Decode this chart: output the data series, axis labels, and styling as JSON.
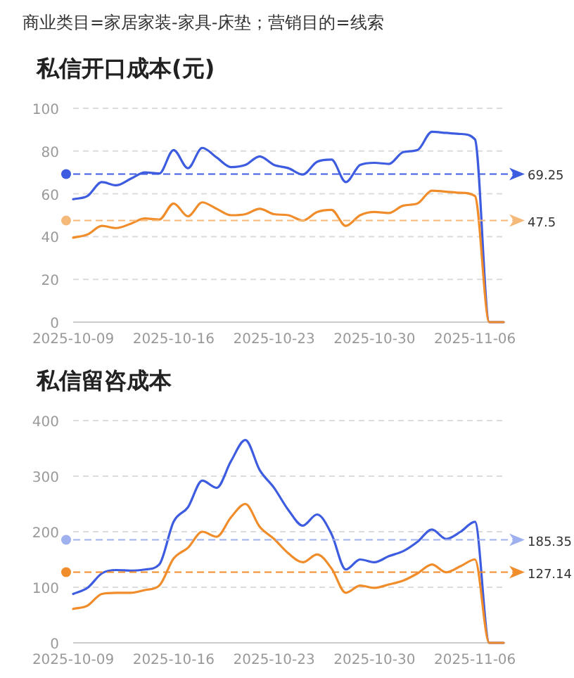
{
  "chart_data": [
    {
      "type": "line",
      "title": "私信开口成本(元)",
      "annotations": [
        "商业类目=家居家装-家具-床垫；营销目的=线索"
      ],
      "x": [
        "2025-10-09",
        "2025-10-10",
        "2025-10-11",
        "2025-10-12",
        "2025-10-13",
        "2025-10-14",
        "2025-10-15",
        "2025-10-16",
        "2025-10-17",
        "2025-10-18",
        "2025-10-19",
        "2025-10-20",
        "2025-10-21",
        "2025-10-22",
        "2025-10-23",
        "2025-10-24",
        "2025-10-25",
        "2025-10-26",
        "2025-10-27",
        "2025-10-28",
        "2025-10-29",
        "2025-10-30",
        "2025-10-31",
        "2025-11-01",
        "2025-11-02",
        "2025-11-03",
        "2025-11-04",
        "2025-11-05",
        "2025-11-06",
        "2025-11-07",
        "2025-11-08"
      ],
      "series": [
        {
          "color": "#3d5ce0",
          "values": [
            57.5,
            59,
            65.5,
            64,
            67,
            70,
            69.5,
            80.5,
            72,
            81.5,
            77,
            72.5,
            73.5,
            77.5,
            73.5,
            72,
            69,
            75,
            76,
            65.5,
            73.5,
            74.5,
            74,
            79.5,
            80.5,
            89,
            88.5,
            88,
            85.5,
            0,
            0
          ]
        },
        {
          "color": "#f08c2a",
          "values": [
            39.5,
            41,
            45,
            44,
            46,
            48.5,
            48,
            55.5,
            49.5,
            56,
            53,
            50,
            50.5,
            53,
            50.5,
            50,
            47.5,
            51.5,
            52.5,
            45,
            50,
            51.5,
            51,
            54.5,
            55.5,
            61.5,
            61,
            60.5,
            59,
            0,
            0
          ]
        }
      ],
      "xlim": [
        "2025-10-09",
        "2025-11-08"
      ],
      "xticks": [
        "2025-10-09",
        "2025-10-16",
        "2025-10-23",
        "2025-10-30",
        "2025-11-06"
      ],
      "ylim": [
        0,
        100
      ],
      "yticks": [
        0,
        20,
        40,
        60,
        80,
        100
      ],
      "grid": "y",
      "ref_lines": [
        {
          "axis": "y",
          "value": 69.25,
          "label": "69.25",
          "color": "#3d5ce0",
          "line_style": "dashed"
        },
        {
          "axis": "y",
          "value": 47.5,
          "label": "47.5",
          "color": "#f5b97a",
          "line_style": "dashed"
        }
      ]
    },
    {
      "type": "line",
      "title": "私信留咨成本",
      "x": [
        "2025-10-09",
        "2025-10-10",
        "2025-10-11",
        "2025-10-12",
        "2025-10-13",
        "2025-10-14",
        "2025-10-15",
        "2025-10-16",
        "2025-10-17",
        "2025-10-18",
        "2025-10-19",
        "2025-10-20",
        "2025-10-21",
        "2025-10-22",
        "2025-10-23",
        "2025-10-24",
        "2025-10-25",
        "2025-10-26",
        "2025-10-27",
        "2025-10-28",
        "2025-10-29",
        "2025-10-30",
        "2025-10-31",
        "2025-11-01",
        "2025-11-02",
        "2025-11-03",
        "2025-11-04",
        "2025-11-05",
        "2025-11-06",
        "2025-11-07",
        "2025-11-08"
      ],
      "series": [
        {
          "color": "#3d5ce0",
          "values": [
            88,
            99,
            125,
            131,
            130,
            132,
            141,
            218,
            244,
            292,
            279,
            327,
            365,
            311,
            279,
            239,
            211,
            231,
            196,
            132,
            150,
            145,
            156,
            165,
            182,
            204,
            187,
            200,
            218,
            0,
            0
          ]
        },
        {
          "color": "#f08c2a",
          "values": [
            61,
            67,
            88,
            90,
            90,
            95,
            103,
            152,
            171,
            200,
            191,
            226,
            250,
            209,
            187,
            161,
            145,
            159,
            134,
            90,
            103,
            99,
            105,
            112,
            125,
            141,
            127,
            138,
            150,
            0,
            0
          ]
        }
      ],
      "xlim": [
        "2025-10-09",
        "2025-11-08"
      ],
      "xticks": [
        "2025-10-09",
        "2025-10-16",
        "2025-10-23",
        "2025-10-30",
        "2025-11-06"
      ],
      "ylim": [
        0,
        400
      ],
      "yticks": [
        0,
        100,
        200,
        300,
        400
      ],
      "grid": "y",
      "ref_lines": [
        {
          "axis": "y",
          "value": 185.35,
          "label": "185.35",
          "color": "#9fb0ee",
          "line_style": "dashed"
        },
        {
          "axis": "y",
          "value": 127.14,
          "label": "127.14",
          "color": "#f08c2a",
          "line_style": "dashed"
        }
      ]
    }
  ]
}
